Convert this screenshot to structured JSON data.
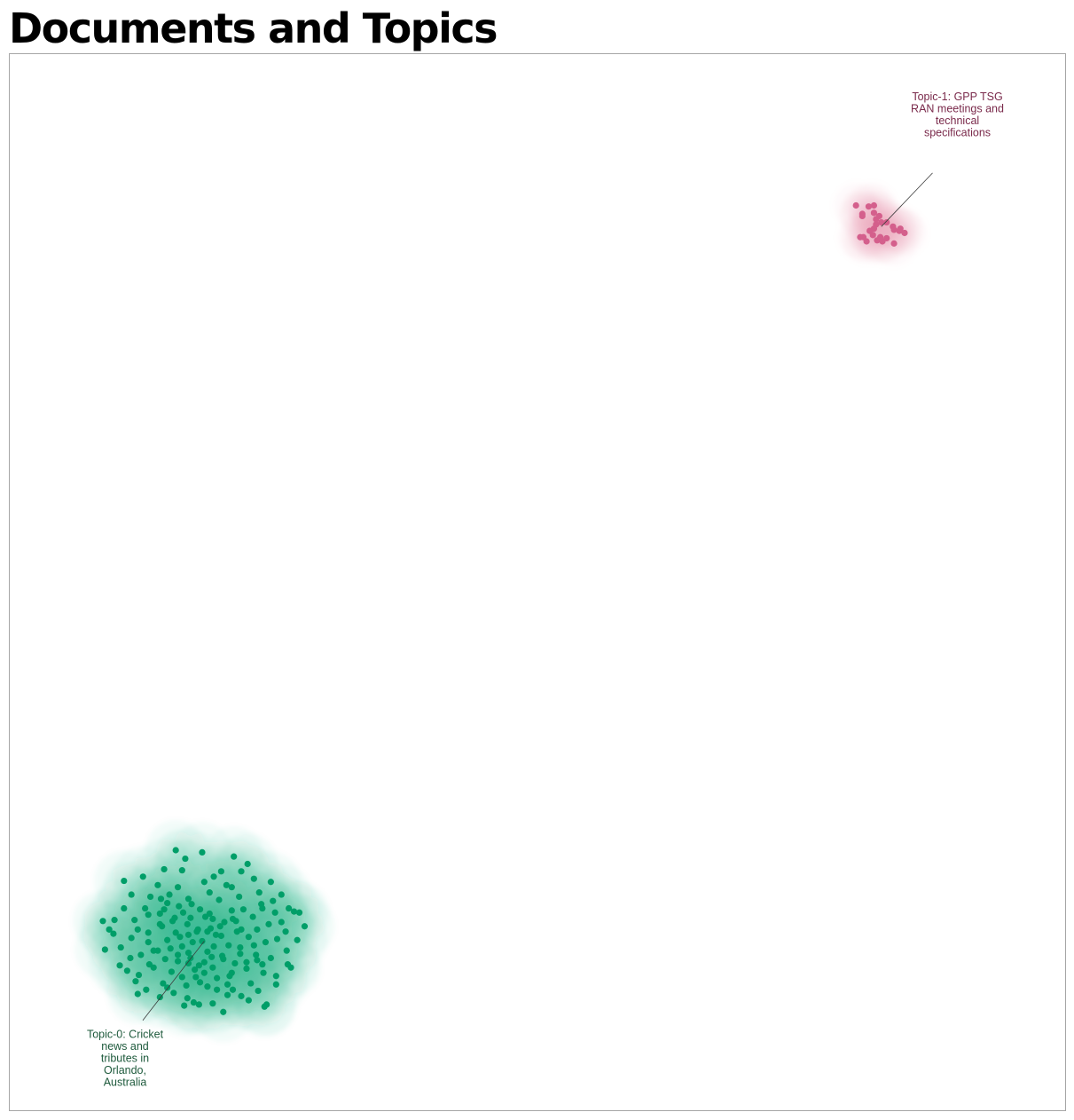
{
  "chart_data": {
    "type": "scatter",
    "title": "Documents and Topics",
    "xlabel": "",
    "ylabel": "",
    "xlim": [
      0,
      100
    ],
    "ylim": [
      0,
      100
    ],
    "grid": false,
    "axes_ticks": false,
    "legend": "none",
    "series": [
      {
        "color": "#009E68",
        "label_color": "#1E5A3C",
        "density_color": "#2EB888",
        "annotation": {
          "lines": [
            "Topic-0: Cricket",
            "news and",
            "tributes in",
            "Orlando,",
            "Australia"
          ],
          "anchor": [
            18.5,
            16.0
          ],
          "label_at": [
            11.0,
            8.0
          ]
        },
        "points": [
          [
            15.8,
            24.6
          ],
          [
            18.3,
            24.4
          ],
          [
            16.7,
            23.8
          ],
          [
            21.3,
            24.0
          ],
          [
            12.7,
            22.1
          ],
          [
            10.9,
            21.7
          ],
          [
            22.6,
            23.3
          ],
          [
            14.1,
            21.3
          ],
          [
            16.0,
            21.1
          ],
          [
            20.6,
            21.3
          ],
          [
            23.2,
            21.9
          ],
          [
            25.8,
            20.4
          ],
          [
            11.6,
            20.4
          ],
          [
            13.4,
            20.2
          ],
          [
            15.0,
            19.6
          ],
          [
            17.0,
            20.0
          ],
          [
            19.0,
            20.6
          ],
          [
            21.8,
            20.2
          ],
          [
            23.7,
            20.6
          ],
          [
            26.5,
            19.1
          ],
          [
            10.9,
            19.1
          ],
          [
            13.2,
            18.5
          ],
          [
            14.7,
            19.0
          ],
          [
            16.5,
            18.7
          ],
          [
            18.1,
            19.0
          ],
          [
            19.3,
            18.1
          ],
          [
            21.1,
            18.9
          ],
          [
            22.2,
            19.0
          ],
          [
            24.0,
            19.1
          ],
          [
            25.2,
            18.7
          ],
          [
            27.0,
            18.8
          ],
          [
            28.0,
            17.4
          ],
          [
            12.2,
            17.1
          ],
          [
            14.3,
            17.6
          ],
          [
            15.5,
            17.9
          ],
          [
            16.9,
            17.6
          ],
          [
            17.8,
            16.9
          ],
          [
            19.1,
            17.2
          ],
          [
            20.0,
            17.4
          ],
          [
            21.5,
            17.9
          ],
          [
            23.5,
            17.1
          ],
          [
            24.6,
            17.6
          ],
          [
            26.2,
            16.9
          ],
          [
            9.9,
            16.7
          ],
          [
            11.6,
            16.3
          ],
          [
            13.2,
            15.9
          ],
          [
            15.0,
            16.1
          ],
          [
            16.2,
            16.4
          ],
          [
            17.4,
            15.9
          ],
          [
            18.3,
            16.0
          ],
          [
            19.6,
            16.6
          ],
          [
            20.8,
            15.6
          ],
          [
            22.7,
            16.4
          ],
          [
            24.3,
            15.9
          ],
          [
            25.4,
            16.2
          ],
          [
            10.6,
            15.4
          ],
          [
            12.5,
            14.7
          ],
          [
            14.1,
            15.1
          ],
          [
            16.0,
            14.7
          ],
          [
            17.2,
            14.4
          ],
          [
            18.8,
            15.0
          ],
          [
            20.3,
            14.3
          ],
          [
            21.9,
            14.8
          ],
          [
            23.4,
            14.7
          ],
          [
            24.8,
            14.4
          ],
          [
            26.3,
            15.1
          ],
          [
            11.2,
            13.2
          ],
          [
            13.7,
            13.5
          ],
          [
            15.4,
            13.1
          ],
          [
            17.6,
            13.3
          ],
          [
            19.3,
            13.5
          ],
          [
            21.1,
            13.0
          ],
          [
            22.5,
            13.4
          ],
          [
            24.1,
            13.0
          ],
          [
            26.7,
            13.5
          ],
          [
            12.0,
            12.2
          ],
          [
            14.6,
            12.0
          ],
          [
            16.8,
            11.8
          ],
          [
            18.8,
            11.7
          ],
          [
            20.7,
            11.9
          ],
          [
            22.9,
            12.0
          ],
          [
            25.3,
            11.9
          ],
          [
            16.9,
            10.6
          ],
          [
            19.3,
            10.1
          ],
          [
            22.7,
            10.4
          ],
          [
            24.2,
            9.8
          ],
          [
            20.3,
            9.3
          ],
          [
            18.0,
            10.0
          ],
          [
            14.3,
            10.7
          ],
          [
            12.2,
            11.0
          ],
          [
            17.3,
            19.5
          ],
          [
            18.6,
            18.3
          ],
          [
            19.9,
            19.9
          ],
          [
            17.9,
            17.1
          ],
          [
            19.4,
            15.5
          ],
          [
            20.4,
            17.8
          ],
          [
            16.4,
            15.5
          ],
          [
            17.0,
            13.9
          ],
          [
            18.5,
            13.0
          ],
          [
            19.7,
            12.5
          ],
          [
            21.6,
            16.9
          ],
          [
            20.1,
            16.5
          ],
          [
            22.0,
            17.1
          ],
          [
            23.1,
            18.3
          ],
          [
            21.2,
            18.1
          ],
          [
            15.7,
            18.2
          ],
          [
            14.3,
            18.6
          ],
          [
            15.8,
            16.8
          ],
          [
            13.2,
            16.8
          ],
          [
            14.8,
            14.3
          ],
          [
            16.4,
            12.6
          ],
          [
            18.1,
            12.1
          ],
          [
            21.2,
            11.4
          ],
          [
            23.6,
            11.3
          ],
          [
            25.3,
            12.7
          ],
          [
            27.3,
            16.1
          ],
          [
            11.9,
            18.0
          ],
          [
            12.9,
            19.1
          ],
          [
            15.2,
            20.4
          ],
          [
            18.5,
            21.6
          ],
          [
            20.1,
            22.6
          ],
          [
            22.0,
            22.6
          ],
          [
            24.8,
            21.6
          ],
          [
            9.5,
            17.1
          ],
          [
            8.9,
            17.9
          ],
          [
            10.0,
            18.0
          ],
          [
            9.1,
            15.2
          ],
          [
            11.5,
            14.4
          ],
          [
            13.3,
            13.8
          ],
          [
            24.4,
            10.0
          ],
          [
            20.7,
            10.9
          ],
          [
            17.5,
            10.2
          ],
          [
            18.5,
            14.0
          ],
          [
            19.0,
            18.6
          ],
          [
            21.9,
            15.4
          ],
          [
            23.9,
            19.5
          ],
          [
            14.7,
            22.8
          ],
          [
            16.4,
            22.7
          ],
          [
            19.4,
            22.1
          ],
          [
            22.5,
            14.0
          ],
          [
            24.0,
            13.8
          ],
          [
            26.4,
            13.8
          ],
          [
            27.5,
            18.7
          ],
          [
            25.8,
            17.8
          ],
          [
            23.2,
            15.6
          ],
          [
            13.0,
            11.4
          ],
          [
            15.0,
            11.6
          ],
          [
            17.0,
            16.6
          ],
          [
            18.8,
            16.9
          ],
          [
            20.2,
            14.6
          ],
          [
            21.4,
            13.9
          ],
          [
            16.1,
            19.3
          ],
          [
            17.2,
            18.2
          ],
          [
            13.7,
            15.1
          ],
          [
            12.3,
            12.8
          ],
          [
            10.5,
            13.7
          ],
          [
            14.4,
            20.0
          ],
          [
            25.0,
            19.8
          ],
          [
            21.1,
            21.1
          ],
          [
            18.0,
            13.7
          ],
          [
            20.9,
            12.7
          ],
          [
            22.0,
            10.8
          ],
          [
            15.6,
            11.1
          ],
          [
            16.6,
            9.9
          ],
          [
            19.7,
            11.4
          ],
          [
            17.0,
            14.9
          ],
          [
            19.2,
            14.5
          ],
          [
            23.5,
            14.2
          ],
          [
            15.3,
            15.3
          ],
          [
            14.5,
            17.4
          ],
          [
            16.0,
            14.1
          ],
          [
            17.7,
            12.6
          ]
        ]
      },
      {
        "color": "#D45F8C",
        "label_color": "#7A2A4B",
        "density_color": "#E79BB6",
        "annotation": {
          "lines": [
            "Topic-1: GPP TSG",
            "RAN meetings and",
            "technical",
            "specifications"
          ],
          "anchor": [
            82.6,
            83.6
          ],
          "label_at": [
            89.8,
            92.2
          ]
        },
        "points": [
          [
            80.2,
            85.6
          ],
          [
            81.4,
            85.5
          ],
          [
            81.9,
            85.6
          ],
          [
            80.8,
            84.8
          ],
          [
            81.9,
            84.9
          ],
          [
            80.8,
            84.6
          ],
          [
            82.1,
            84.3
          ],
          [
            82.6,
            84.0
          ],
          [
            83.1,
            84.0
          ],
          [
            82.1,
            83.8
          ],
          [
            83.7,
            83.6
          ],
          [
            84.3,
            83.2
          ],
          [
            84.8,
            83.0
          ],
          [
            81.9,
            83.4
          ],
          [
            81.5,
            83.2
          ],
          [
            84.4,
            83.4
          ],
          [
            83.8,
            83.3
          ],
          [
            80.6,
            82.6
          ],
          [
            81.2,
            82.2
          ],
          [
            82.2,
            82.3
          ],
          [
            82.7,
            82.2
          ],
          [
            83.1,
            82.5
          ],
          [
            80.9,
            82.6
          ],
          [
            81.8,
            82.8
          ],
          [
            83.8,
            82.0
          ],
          [
            82.5,
            82.6
          ],
          [
            82.4,
            84.6
          ]
        ]
      }
    ]
  }
}
